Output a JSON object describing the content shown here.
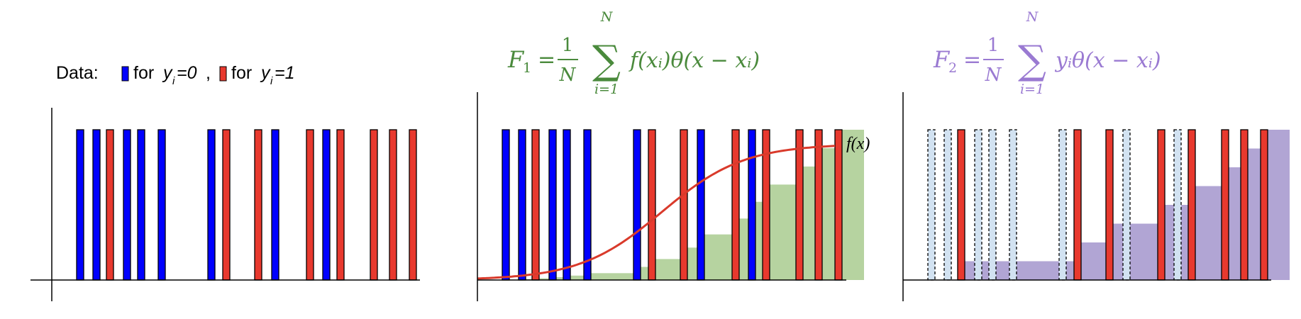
{
  "legend": {
    "prefix": "Data: ",
    "for_text": "for",
    "y_var": "y",
    "sub_i": "i",
    "val_zero": "=0",
    "separator": ",",
    "val_one": "=1"
  },
  "colors": {
    "class_zero": "#0000ff",
    "class_one": "#e8392e",
    "bar_outline": "#000000",
    "f1_cumulative": "#b6d3a0",
    "f2_cumulative": "#b1a5d4",
    "curve": "#d93a2b",
    "formula_f1": "#4a8a3c",
    "formula_f2": "#9a7ad2",
    "dashed_fill": "#d2e2f1"
  },
  "data_sequence": [
    0,
    0,
    1,
    0,
    0,
    0,
    0,
    1,
    1,
    0,
    1,
    0,
    1,
    1,
    1,
    1
  ],
  "panels": [
    {
      "id": "panel-data",
      "formula": null,
      "curve_label": null
    },
    {
      "id": "panel-f1",
      "formula": {
        "lhs": "F",
        "lhs_sub": "1",
        "eq": "=",
        "num": "1",
        "den": "N",
        "sum": "∑",
        "sum_top": "N",
        "sum_bottom": "i=1",
        "body": "f(xᵢ)θ(x − xᵢ)"
      },
      "curve_label": "f(x)"
    },
    {
      "id": "panel-f2",
      "formula": {
        "lhs": "F",
        "lhs_sub": "2",
        "eq": "=",
        "num": "1",
        "den": "N",
        "sum": "∑",
        "sum_top": "N",
        "sum_bottom": "i=1",
        "body": "yᵢθ(x − xᵢ)"
      },
      "curve_label": null
    }
  ],
  "chart_data": {
    "type": "bar",
    "description_series": [
      {
        "name": "y_i=0"
      },
      {
        "name": "y_i=1"
      }
    ]
  }
}
